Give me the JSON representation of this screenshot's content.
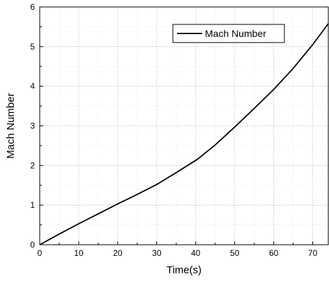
{
  "chart_data": {
    "type": "line",
    "xlabel": "Time(s)",
    "ylabel": "Mach Number",
    "xlim": [
      0,
      74
    ],
    "ylim": [
      0,
      6
    ],
    "xticks": [
      0,
      10,
      20,
      30,
      40,
      50,
      60,
      70
    ],
    "yticks": [
      0,
      1,
      2,
      3,
      4,
      5,
      6
    ],
    "grid": true,
    "legend_position": "top-right",
    "series": [
      {
        "name": "Mach Number",
        "color": "#000000",
        "x": [
          0,
          5,
          10,
          15,
          20,
          25,
          30,
          35,
          40,
          41,
          45,
          50,
          55,
          60,
          65,
          70,
          74
        ],
        "y": [
          0,
          0.27,
          0.53,
          0.78,
          1.03,
          1.27,
          1.52,
          1.82,
          2.13,
          2.2,
          2.52,
          2.97,
          3.44,
          3.92,
          4.45,
          5.05,
          5.58
        ]
      }
    ]
  }
}
